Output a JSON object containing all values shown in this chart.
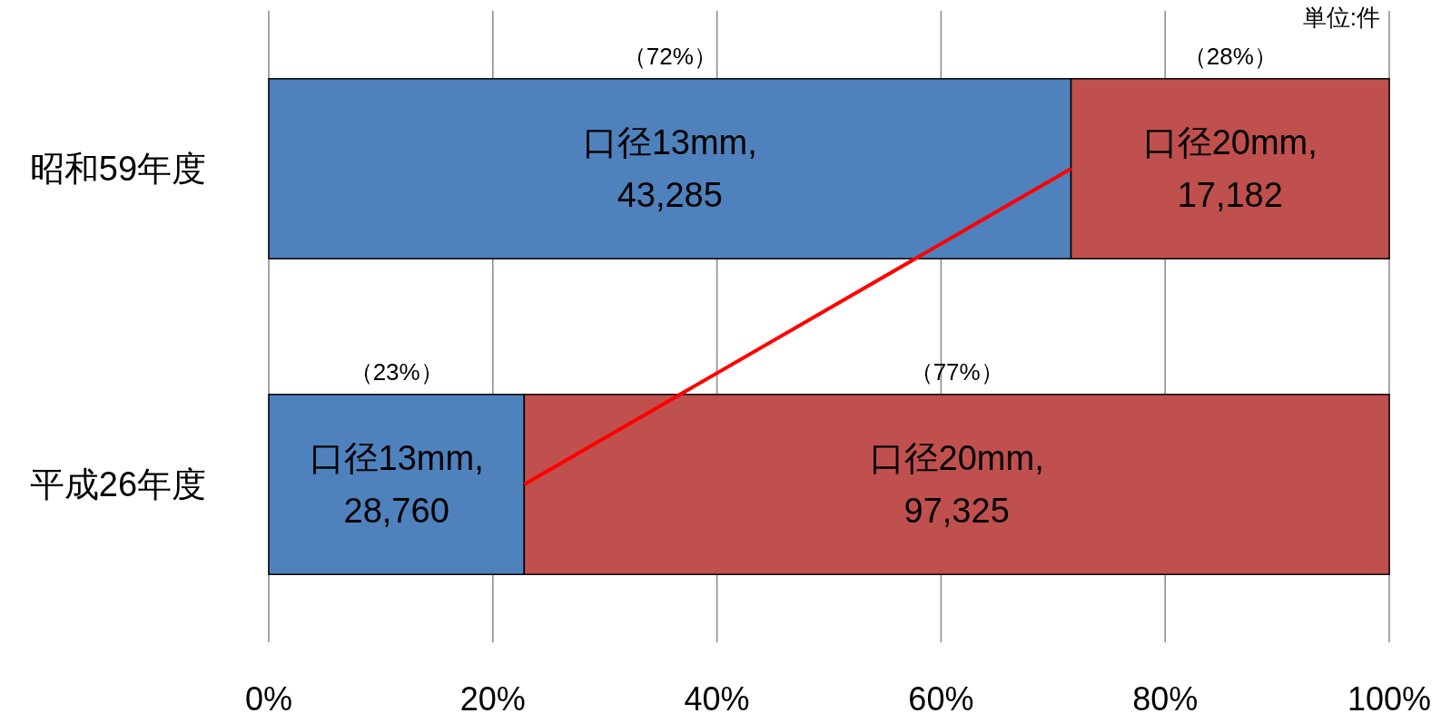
{
  "chart_data": {
    "type": "bar",
    "orientation": "horizontal",
    "stacked": true,
    "categories": [
      "昭和59年度",
      "平成26年度"
    ],
    "series": [
      {
        "color": "#4f81bd",
        "values": [
          71.6,
          22.8
        ],
        "value_labels": [
          "口径13mm,\n43,285",
          "口径13mm,\n28,760"
        ]
      },
      {
        "color": "#c0504d",
        "values": [
          28.4,
          77.2
        ],
        "value_labels": [
          "口径20mm,\n17,182",
          "口径20mm,\n97,325"
        ]
      },
      {
        "type": "line",
        "color": "#ff0000",
        "values": [
          71.6,
          22.8
        ]
      }
    ],
    "xlim": [
      0,
      100
    ],
    "xticks": [
      {
        "value": 0,
        "label": "0%"
      },
      {
        "value": 20,
        "label": "20%"
      },
      {
        "value": 40,
        "label": "40%"
      },
      {
        "value": 60,
        "label": "60%"
      },
      {
        "value": 80,
        "label": "80%"
      },
      {
        "value": 100,
        "label": "100%"
      }
    ],
    "grid": "x",
    "annotations": [
      "（72%）",
      "（28%）",
      "（23%）",
      "（77%）",
      "単位:件"
    ]
  }
}
